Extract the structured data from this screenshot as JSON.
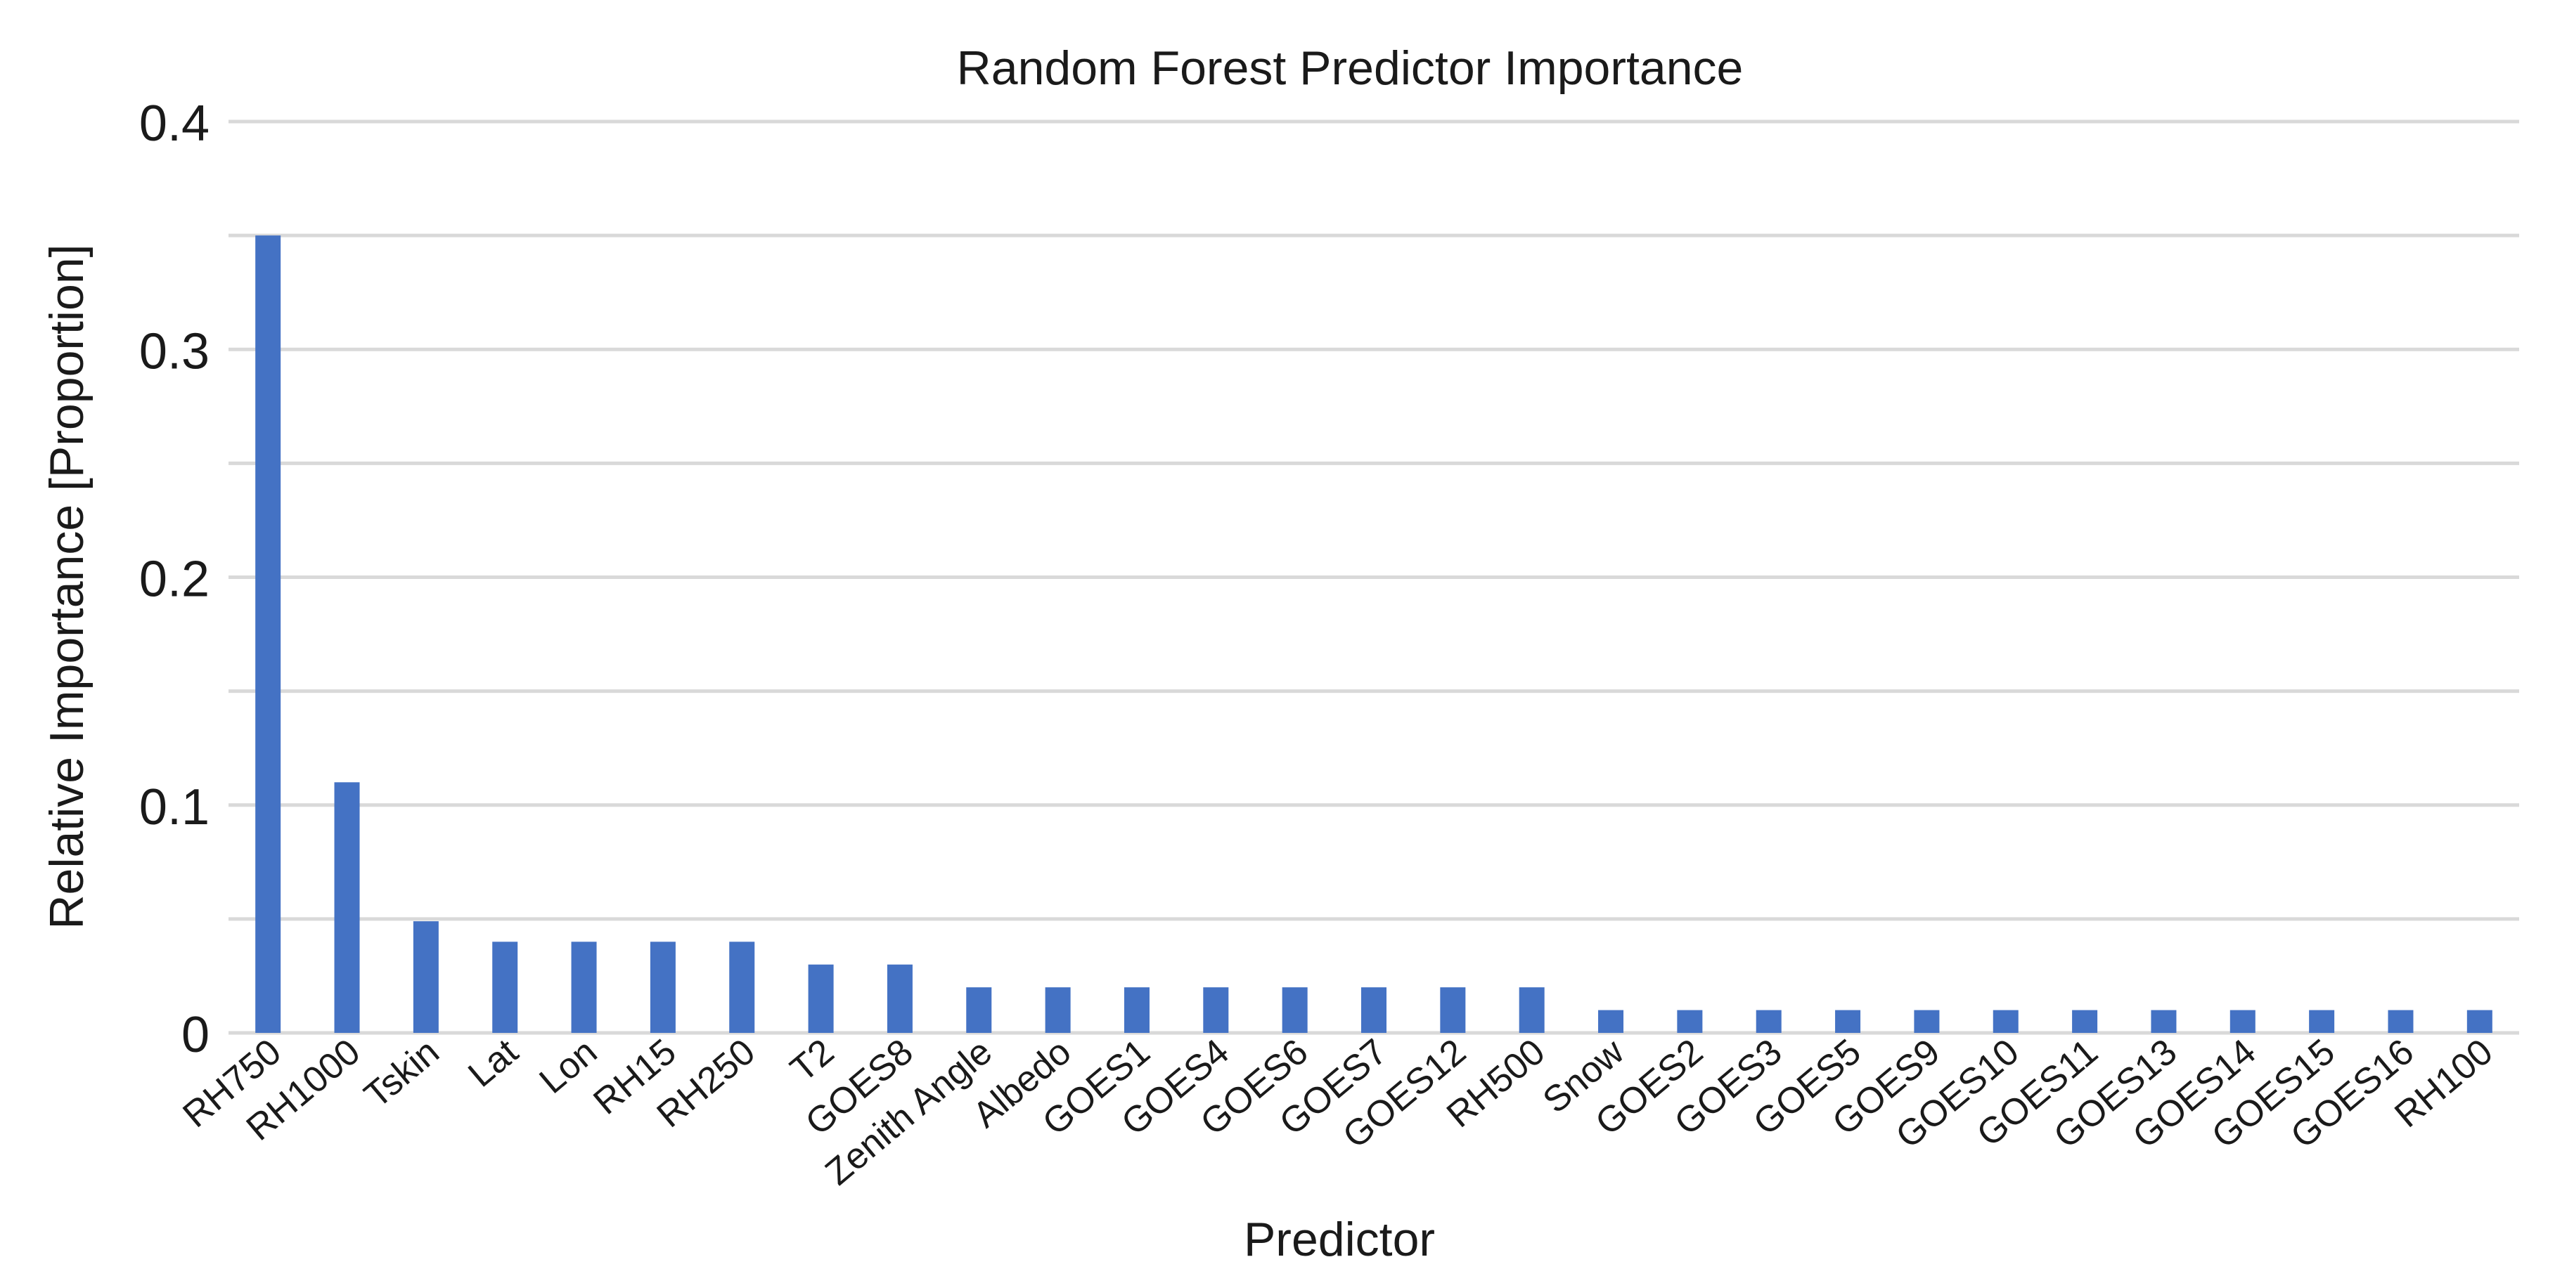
{
  "chart_data": {
    "type": "bar",
    "title": "Random Forest Predictor Importance",
    "xlabel": "Predictor",
    "ylabel": "Relative Importance [Proportion]",
    "ylim": [
      0,
      0.4
    ],
    "yticks": [
      0,
      0.1,
      0.2,
      0.3,
      0.4
    ],
    "ytick_labels": [
      "0",
      "0.1",
      "0.2",
      "0.3",
      "0.4"
    ],
    "grid": true,
    "legend": "none",
    "categories": [
      "RH750",
      "RH1000",
      "Tskin",
      "Lat",
      "Lon",
      "RH15",
      "RH250",
      "T2",
      "GOES8",
      "Zenith Angle",
      "Albedo",
      "GOES1",
      "GOES4",
      "GOES6",
      "GOES7",
      "GOES12",
      "RH500",
      "Snow",
      "GOES2",
      "GOES3",
      "GOES5",
      "GOES9",
      "GOES10",
      "GOES11",
      "GOES13",
      "GOES14",
      "GOES15",
      "GOES16",
      "RH100"
    ],
    "values": [
      0.35,
      0.11,
      0.049,
      0.04,
      0.04,
      0.04,
      0.04,
      0.03,
      0.03,
      0.02,
      0.02,
      0.02,
      0.02,
      0.02,
      0.02,
      0.02,
      0.02,
      0.01,
      0.01,
      0.01,
      0.01,
      0.01,
      0.01,
      0.01,
      0.01,
      0.01,
      0.01,
      0.01,
      0.01
    ]
  },
  "colors": {
    "bar": "#4472c4",
    "grid": "#d9d9d9",
    "text": "#1a1a1a"
  }
}
